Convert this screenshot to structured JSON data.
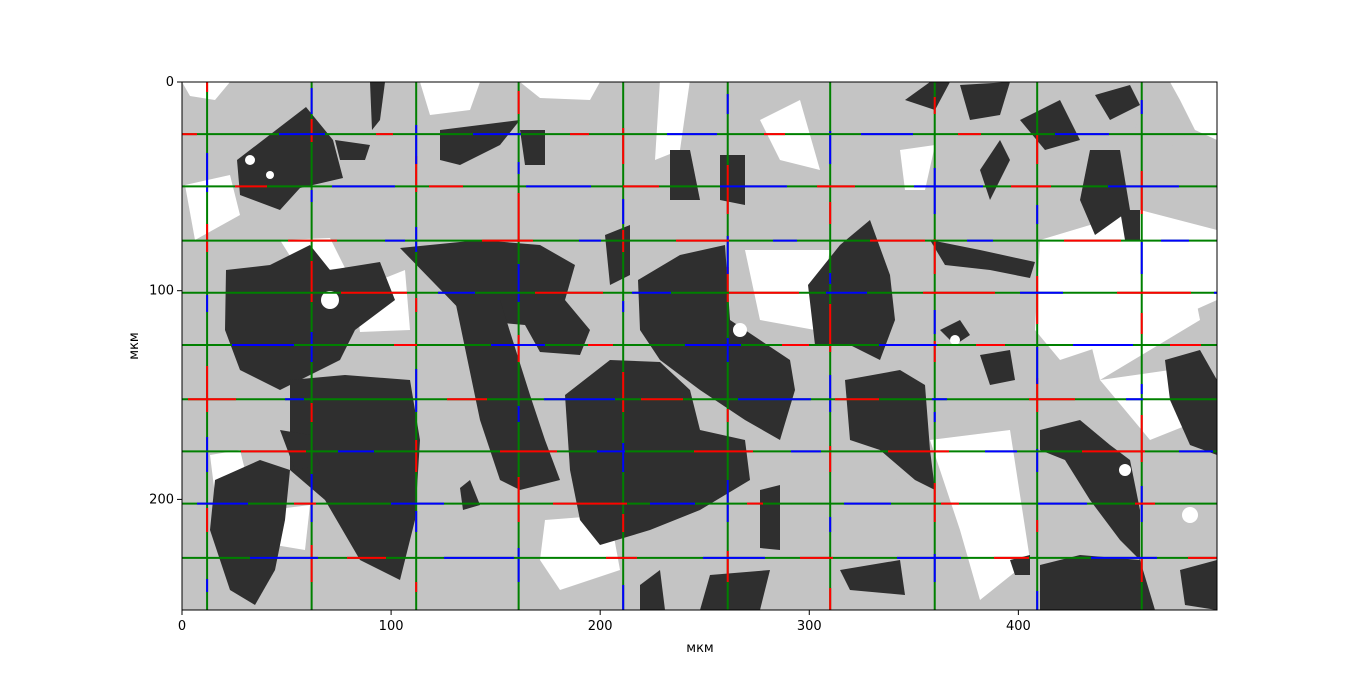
{
  "chart_data": {
    "type": "image",
    "title": "",
    "xlabel": "мкм",
    "ylabel": "мкм",
    "xlim": [
      0,
      495
    ],
    "ylim": [
      253,
      0
    ],
    "x_ticks": [
      0,
      100,
      200,
      300,
      400
    ],
    "y_ticks": [
      0,
      100,
      200
    ],
    "grid_x_lines": [
      12,
      62,
      112,
      161,
      211,
      261,
      310,
      360,
      409,
      459
    ],
    "grid_y_lines": [
      25,
      50,
      76,
      101,
      126,
      152,
      177,
      202,
      228
    ],
    "line_colors": {
      "default": "#008000",
      "crossing_white_phase": "#ff0000",
      "crossing_dark_phase": "#0000ff"
    },
    "image_description_colors": {
      "background_matrix": "#c0c0c0",
      "dark_phase": "#333333",
      "white_phase": "#ffffff"
    }
  }
}
